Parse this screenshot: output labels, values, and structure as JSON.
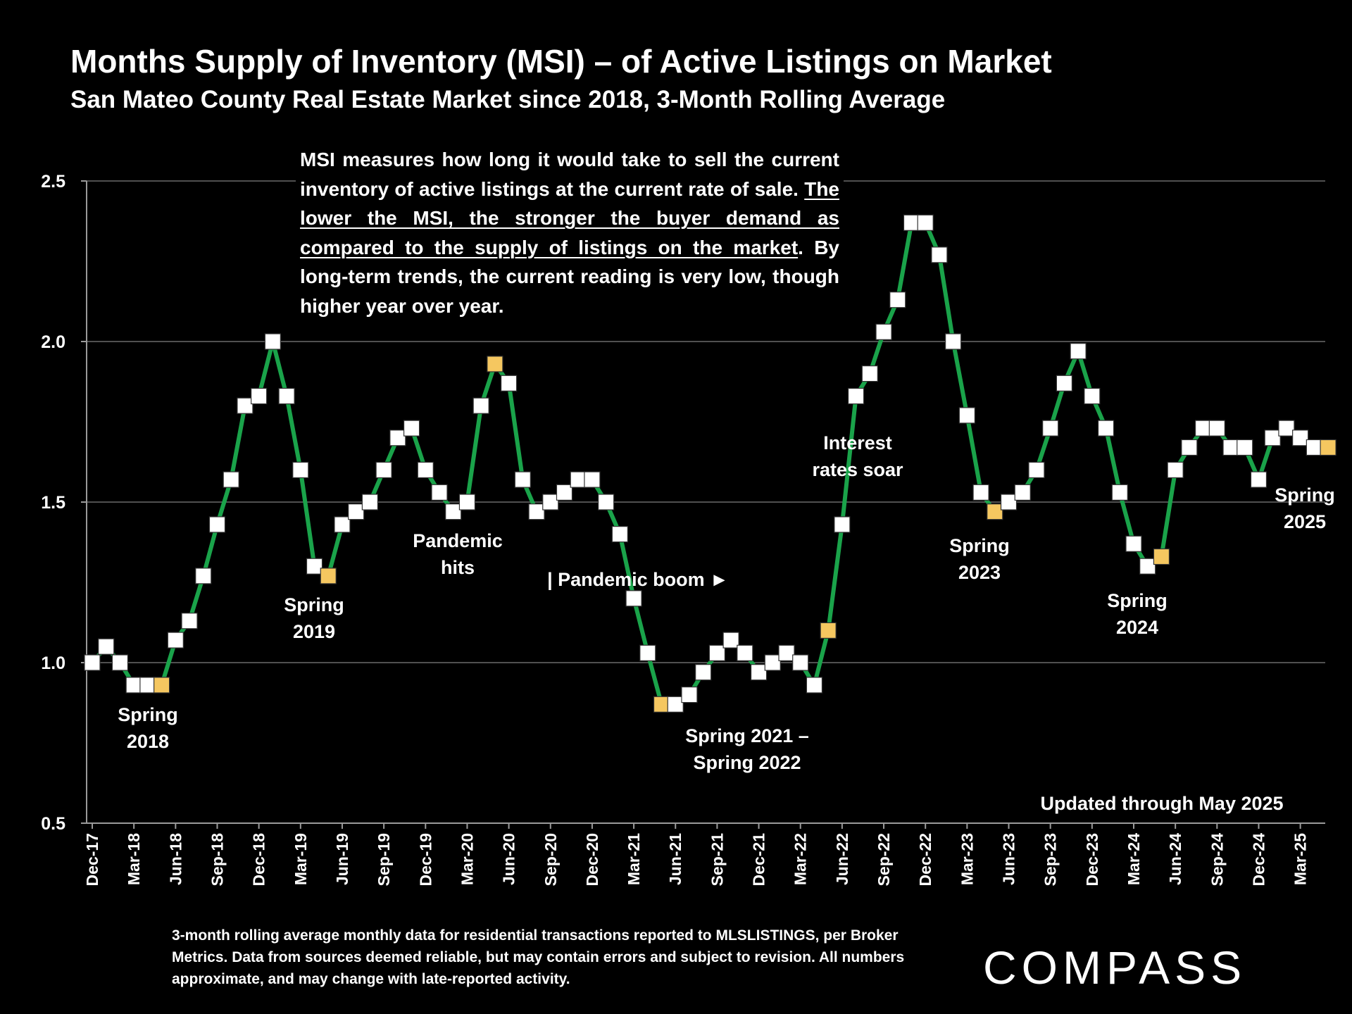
{
  "header": {
    "title": "Months Supply of Inventory (MSI) – of Active Listings on Market",
    "subtitle": "San Mateo County Real Estate Market since 2018, 3-Month Rolling Average"
  },
  "info_box": {
    "part1": "MSI measures how long it would take to sell the current inventory of active listings at the current rate of sale. ",
    "emphasis": "The lower the MSI, the stronger the buyer demand as compared to the supply of listings on the market",
    "part2": ".  By long-term trends, the current reading is very low, though higher year over year."
  },
  "footnote": "3-month rolling average monthly data for residential transactions reported to MLSLISTINGS, per Broker Metrics. Data from sources deemed reliable, but may contain errors and subject to revision. All numbers approximate, and may change with late-reported activity.",
  "logo_text": "COMPASS",
  "chart_data": {
    "type": "line",
    "y_ticks": [
      "0.5",
      "1.0",
      "1.5",
      "2.0",
      "2.5"
    ],
    "ylim": [
      0.5,
      2.5
    ],
    "grid": true,
    "x_tick_labels": [
      "Dec-17",
      "Mar-18",
      "Jun-18",
      "Sep-18",
      "Dec-18",
      "Mar-19",
      "Jun-19",
      "Sep-19",
      "Dec-19",
      "Mar-20",
      "Jun-20",
      "Sep-20",
      "Dec-20",
      "Mar-21",
      "Jun-21",
      "Sep-21",
      "Dec-21",
      "Mar-22",
      "Jun-22",
      "Sep-22",
      "Dec-22",
      "Mar-23",
      "Jun-23",
      "Sep-23",
      "Dec-23",
      "Mar-24",
      "Jun-24",
      "Sep-24",
      "Dec-24",
      "Mar-25"
    ],
    "series": [
      {
        "values": [
          1.0,
          1.05,
          1.0,
          0.93,
          0.93,
          0.93,
          1.07,
          1.13,
          1.27,
          1.43,
          1.57,
          1.8,
          1.83,
          2.0,
          1.83,
          1.6,
          1.3,
          1.27,
          1.43,
          1.47,
          1.5,
          1.6,
          1.7,
          1.73,
          1.6,
          1.53,
          1.47,
          1.5,
          1.8,
          1.93,
          1.87,
          1.57,
          1.47,
          1.5,
          1.53,
          1.57,
          1.57,
          1.5,
          1.4,
          1.2,
          1.03,
          0.87,
          0.87,
          0.9,
          0.97,
          1.03,
          1.07,
          1.03,
          0.97,
          1.0,
          1.03,
          1.0,
          0.93,
          1.1,
          1.43,
          1.83,
          1.9,
          2.03,
          2.13,
          2.37,
          2.37,
          2.27,
          2.0,
          1.77,
          1.53,
          1.47,
          1.5,
          1.53,
          1.6,
          1.73,
          1.87,
          1.97,
          1.83,
          1.73,
          1.53,
          1.37,
          1.3,
          1.33,
          1.6,
          1.67,
          1.73,
          1.73,
          1.67,
          1.67,
          1.57,
          1.7,
          1.73,
          1.7,
          1.67,
          1.67
        ],
        "highlight_indices": [
          5,
          17,
          29,
          41,
          53,
          65,
          77,
          89
        ],
        "line_color": "#1aa34a",
        "marker_color": "#ffffff",
        "highlight_color": "#f5c760"
      }
    ],
    "annotations": [
      {
        "id": "spring2018",
        "lines": [
          "Spring",
          "2018"
        ]
      },
      {
        "id": "spring2019",
        "lines": [
          "Spring",
          "2019"
        ]
      },
      {
        "id": "pandemic-hits",
        "lines": [
          "Pandemic",
          "hits"
        ]
      },
      {
        "id": "pandemic-boom",
        "lines": [
          "| Pandemic boom ►"
        ]
      },
      {
        "id": "spring2021",
        "lines": [
          "Spring 2021 –",
          "Spring 2022"
        ]
      },
      {
        "id": "interest",
        "lines": [
          "Interest",
          "rates soar"
        ]
      },
      {
        "id": "spring2023",
        "lines": [
          "Spring",
          "2023"
        ]
      },
      {
        "id": "spring2024",
        "lines": [
          "Spring",
          "2024"
        ]
      },
      {
        "id": "spring2025",
        "lines": [
          "Spring",
          "2025"
        ]
      },
      {
        "id": "updated",
        "lines": [
          "Updated through May 2025"
        ]
      }
    ]
  }
}
